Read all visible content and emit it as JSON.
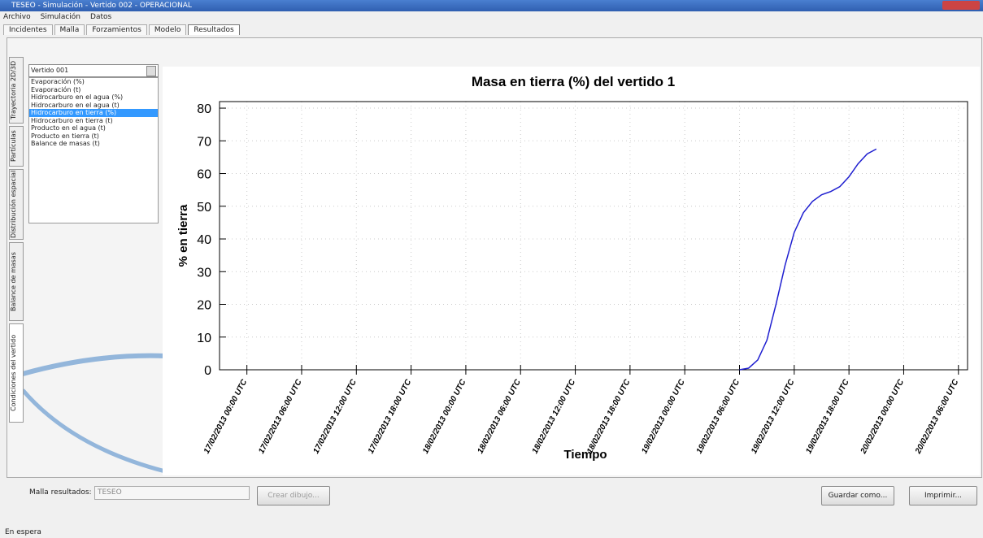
{
  "window": {
    "title": "TESEO - Simulación - Vertido 002 - OPERACIONAL"
  },
  "menu": [
    "Archivo",
    "Simulación",
    "Datos"
  ],
  "tabs": [
    "Incidentes",
    "Malla",
    "Forzamientos",
    "Modelo",
    "Resultados"
  ],
  "side_tabs": [
    "Trayectoria 2D/3D",
    "Partículas",
    "Distribución espacial",
    "Balance de masas",
    "Condiciones del vertido"
  ],
  "dropdown": "Vertido 001",
  "list": {
    "items": [
      "Evaporación (%)",
      "Evaporación (t)",
      "Hidrocarburo en el agua (%)",
      "Hidrocarburo en el agua (t)",
      "Hidrocarburo en tierra (%)",
      "Hidrocarburo en tierra (t)",
      "Producto en el agua (t)",
      "Producto en tierra (t)",
      "Balance de masas (t)"
    ],
    "selected": 4
  },
  "chart_data": {
    "type": "line",
    "title": "Masa en tierra (%) del vertido 1",
    "x_label": "Tiempo",
    "y_label": "% en tierra",
    "color": "#1f1fd0",
    "x": [
      "2013-02-19T06:00Z",
      "2013-02-19T07:00Z",
      "2013-02-19T08:00Z",
      "2013-02-19T09:00Z",
      "2013-02-19T10:00Z",
      "2013-02-19T11:00Z",
      "2013-02-19T12:00Z",
      "2013-02-19T13:00Z",
      "2013-02-19T14:00Z",
      "2013-02-19T15:00Z",
      "2013-02-19T16:00Z",
      "2013-02-19T17:00Z",
      "2013-02-19T18:00Z",
      "2013-02-19T19:00Z",
      "2013-02-19T20:00Z",
      "2013-02-19T21:00Z"
    ],
    "values": [
      0,
      0.5,
      3,
      9,
      20,
      32,
      42,
      48,
      51.5,
      53.5,
      54.5,
      56,
      59,
      63,
      66,
      67.5
    ],
    "xlim": [
      "2013-02-16T21:00Z",
      "2013-02-20T07:00Z"
    ],
    "xticks": [
      {
        "value": "2013-02-17T00:00Z",
        "label": "17/02/2013 00:00 UTC"
      },
      {
        "value": "2013-02-17T06:00Z",
        "label": "17/02/2013 06:00 UTC"
      },
      {
        "value": "2013-02-17T12:00Z",
        "label": "17/02/2013 12:00 UTC"
      },
      {
        "value": "2013-02-17T18:00Z",
        "label": "17/02/2013 18:00 UTC"
      },
      {
        "value": "2013-02-18T00:00Z",
        "label": "18/02/2013 00:00 UTC"
      },
      {
        "value": "2013-02-18T06:00Z",
        "label": "18/02/2013 06:00 UTC"
      },
      {
        "value": "2013-02-18T12:00Z",
        "label": "18/02/2013 12:00 UTC"
      },
      {
        "value": "2013-02-18T18:00Z",
        "label": "18/02/2013 18:00 UTC"
      },
      {
        "value": "2013-02-19T00:00Z",
        "label": "19/02/2013 00:00 UTC"
      },
      {
        "value": "2013-02-19T06:00Z",
        "label": "19/02/2013 06:00 UTC"
      },
      {
        "value": "2013-02-19T12:00Z",
        "label": "19/02/2013 12:00 UTC"
      },
      {
        "value": "2013-02-19T18:00Z",
        "label": "19/02/2013 18:00 UTC"
      },
      {
        "value": "2013-02-20T00:00Z",
        "label": "20/02/2013 00:00 UTC"
      },
      {
        "value": "2013-02-20T06:00Z",
        "label": "20/02/2013 06:00 UTC"
      }
    ],
    "ylim": [
      0,
      82
    ],
    "yticks": [
      0,
      10,
      20,
      30,
      40,
      50,
      60,
      70,
      80
    ],
    "grid": true
  },
  "footer": {
    "mesh_label": "Malla resultados:",
    "mesh_value": "TESEO",
    "draw_button": "Crear dibujo...",
    "save_button": "Guardar como...",
    "print_button": "Imprimir..."
  },
  "status": "En espera"
}
